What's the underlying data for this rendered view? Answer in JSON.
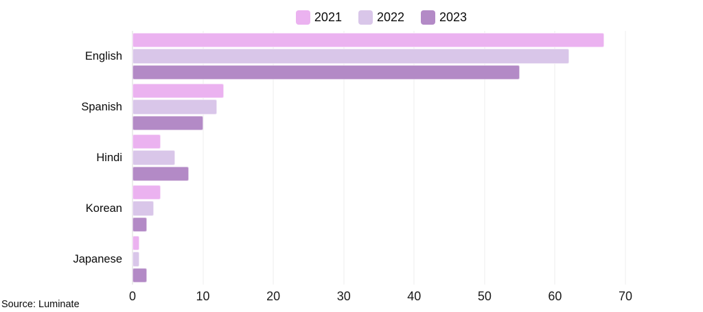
{
  "source": "Source: Luminate",
  "chart_data": {
    "type": "bar",
    "orientation": "horizontal",
    "title": "",
    "xlabel": "",
    "ylabel": "",
    "categories": [
      "English",
      "Spanish",
      "Hindi",
      "Korean",
      "Japanese"
    ],
    "series": [
      {
        "name": "2021",
        "color": "#ebb2f0",
        "values": [
          67,
          13,
          4,
          4,
          1
        ]
      },
      {
        "name": "2022",
        "color": "#d9c6e9",
        "values": [
          62,
          12,
          6,
          3,
          1
        ]
      },
      {
        "name": "2023",
        "color": "#b38ac6",
        "values": [
          55,
          10,
          8,
          2,
          2
        ]
      }
    ],
    "xlim": [
      0,
      70
    ],
    "xticks": [
      0,
      10,
      20,
      30,
      40,
      50,
      60,
      70
    ],
    "grid": true,
    "legend_position": "top-center",
    "annotation": "Source: Luminate"
  }
}
